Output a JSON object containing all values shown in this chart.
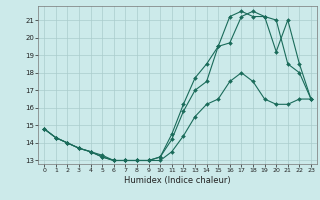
{
  "xlabel": "Humidex (Indice chaleur)",
  "background_color": "#cceaea",
  "grid_color": "#aacccc",
  "line_color": "#1a6b5a",
  "xlim": [
    -0.5,
    23.5
  ],
  "ylim": [
    12.8,
    21.8
  ],
  "xticks": [
    0,
    1,
    2,
    3,
    4,
    5,
    6,
    7,
    8,
    9,
    10,
    11,
    12,
    13,
    14,
    15,
    16,
    17,
    18,
    19,
    20,
    21,
    22,
    23
  ],
  "yticks": [
    13,
    14,
    15,
    16,
    17,
    18,
    19,
    20,
    21
  ],
  "series1_x": [
    0,
    1,
    2,
    3,
    4,
    5,
    6,
    7,
    8,
    9,
    10,
    11,
    12,
    13,
    14,
    15,
    16,
    17,
    18,
    19,
    20,
    21,
    22,
    23
  ],
  "series1_y": [
    14.8,
    14.3,
    14.0,
    13.7,
    13.5,
    13.2,
    13.0,
    13.0,
    13.0,
    13.0,
    13.0,
    13.5,
    14.4,
    15.5,
    16.2,
    16.5,
    17.5,
    18.0,
    17.5,
    16.5,
    16.2,
    16.2,
    16.5,
    16.5
  ],
  "series2_x": [
    0,
    1,
    2,
    3,
    4,
    5,
    6,
    7,
    8,
    9,
    10,
    11,
    12,
    13,
    14,
    15,
    16,
    17,
    18,
    19,
    20,
    21,
    22,
    23
  ],
  "series2_y": [
    14.8,
    14.3,
    14.0,
    13.7,
    13.5,
    13.2,
    13.0,
    13.0,
    13.0,
    13.0,
    13.2,
    14.5,
    16.2,
    17.7,
    18.5,
    19.5,
    19.7,
    21.2,
    21.5,
    21.2,
    19.2,
    21.0,
    18.5,
    16.5
  ],
  "series3_x": [
    0,
    1,
    2,
    3,
    4,
    5,
    6,
    7,
    8,
    9,
    10,
    11,
    12,
    13,
    14,
    15,
    16,
    17,
    18,
    19,
    20,
    21,
    22,
    23
  ],
  "series3_y": [
    14.8,
    14.3,
    14.0,
    13.7,
    13.5,
    13.3,
    13.0,
    13.0,
    13.0,
    13.0,
    13.2,
    14.2,
    15.8,
    17.0,
    17.5,
    19.5,
    21.2,
    21.5,
    21.2,
    21.2,
    21.0,
    18.5,
    18.0,
    16.5
  ]
}
